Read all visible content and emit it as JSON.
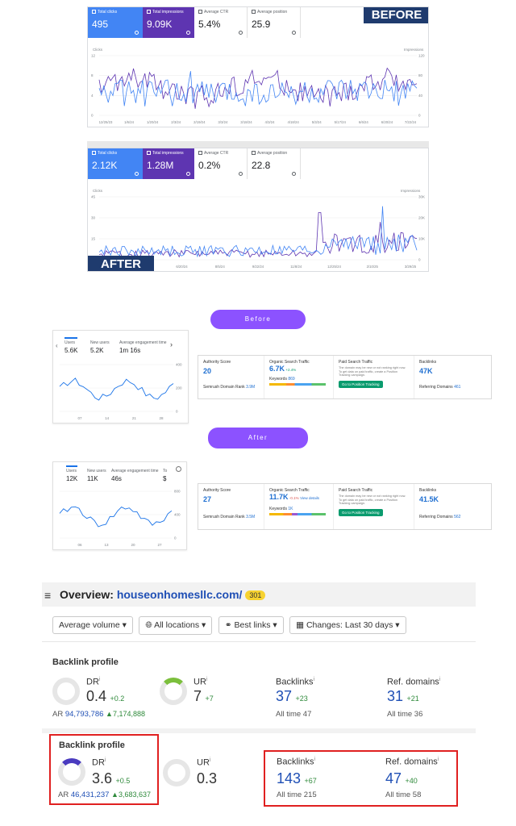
{
  "before_gsc": {
    "banner": "BEFORE",
    "tiles": [
      {
        "label": "Total clicks",
        "value": "495"
      },
      {
        "label": "Total impressions",
        "value": "9.09K"
      },
      {
        "label": "Average CTR",
        "value": "5.4%"
      },
      {
        "label": "Average position",
        "value": "25.9"
      }
    ],
    "y_left_title": "Clicks",
    "y_right_title": "Impressions",
    "y_left": [
      "12",
      "8",
      "4",
      "0"
    ],
    "y_right": [
      "120",
      "80",
      "40",
      "0"
    ],
    "x_ticks": [
      "12/25/23",
      "1/6/24",
      "1/20/24",
      "2/3/24",
      "2/19/24",
      "3/3/24",
      "3/18/24",
      "4/3/24",
      "4/18/24",
      "5/3/24",
      "5/17/24",
      "6/6/24",
      "6/20/24",
      "7/22/24"
    ]
  },
  "after_gsc": {
    "banner": "AFTER",
    "tiles": [
      {
        "label": "Total clicks",
        "value": "2.12K"
      },
      {
        "label": "Total impressions",
        "value": "1.28M"
      },
      {
        "label": "Average CTR",
        "value": "0.2%"
      },
      {
        "label": "Average position",
        "value": "22.8"
      }
    ],
    "y_left_title": "Clicks",
    "y_right_title": "Impressions",
    "y_left": [
      "45",
      "30",
      "15",
      "0"
    ],
    "y_right": [
      "30K",
      "20K",
      "10K",
      "0"
    ],
    "x_ticks": [
      "3/10/24",
      "5/4/24",
      "6/20/24",
      "8/5/24",
      "9/22/24",
      "11/8/24",
      "12/25/24",
      "2/10/25",
      "3/29/25"
    ]
  },
  "pills": {
    "before": "Before",
    "after": "After"
  },
  "ga_before": {
    "metrics": [
      {
        "label": "Users",
        "value": "5.6K"
      },
      {
        "label": "New users",
        "value": "5.2K"
      },
      {
        "label": "Average engagement time",
        "value": "1m 16s"
      }
    ],
    "x_ticks": [
      "07",
      "14",
      "21",
      "28"
    ],
    "y_ticks": [
      "400",
      "200",
      "0"
    ]
  },
  "ga_after": {
    "metrics": [
      {
        "label": "Users",
        "value": "12K"
      },
      {
        "label": "New users",
        "value": "11K"
      },
      {
        "label": "Average engagement time",
        "value": "46s"
      },
      {
        "label": "To",
        "value": "$"
      }
    ],
    "x_ticks": [
      "06",
      "13",
      "20",
      "27"
    ],
    "y_ticks": [
      "800",
      "400",
      "0"
    ]
  },
  "semrush_before": {
    "authority_label": "Authority Score",
    "authority": "20",
    "domain_rank": "Semrush Domain Rank",
    "domain_rank_val": "3.9M",
    "organic_label": "Organic Search Traffic",
    "organic": "6.7K",
    "organic_delta": "+2.4%",
    "keywords_label": "Keywords",
    "keywords": "869",
    "paid_label": "Paid Search Traffic",
    "paid_text": "The domain may be new or not ranking right now. To get data on paid traffic, create a Position Tracking campaign.",
    "button": "Go to Position Tracking",
    "backlinks_label": "Backlinks",
    "backlinks": "47K",
    "ref_label": "Referring Domains",
    "ref": "461"
  },
  "semrush_after": {
    "authority_label": "Authority Score",
    "authority": "27",
    "domain_rank": "Semrush Domain Rank",
    "domain_rank_val": "3.5M",
    "organic_label": "Organic Search Traffic",
    "organic": "11.7K",
    "organic_delta": "-0.1%",
    "view_details": "View details",
    "keywords_label": "Keywords",
    "keywords": "1K",
    "paid_label": "Paid Search Traffic",
    "paid_text": "The domain may be new or not ranking right now. To get data on paid traffic, create a Position Tracking campaign.",
    "button": "Go to Position Tracking",
    "backlinks_label": "Backlinks",
    "backlinks": "41.5K",
    "ref_label": "Referring Domains",
    "ref": "562"
  },
  "ahrefs": {
    "title_prefix": "Overview:",
    "domain": "houseonhomesllc.com/",
    "badge": "301",
    "filters": [
      "Average volume",
      "All locations",
      "Best links",
      "Changes: Last 30 days"
    ],
    "before": {
      "section": "Backlink profile",
      "dr_label": "DR",
      "dr": "0.4",
      "dr_delta": "+0.2",
      "ar_label": "AR",
      "ar": "94,793,786",
      "ar_delta": "7,174,888",
      "ur_label": "UR",
      "ur": "7",
      "ur_delta": "+7",
      "backlinks_label": "Backlinks",
      "backlinks": "37",
      "backlinks_delta": "+23",
      "backlinks_all": "All time 47",
      "ref_label": "Ref. domains",
      "ref": "31",
      "ref_delta": "+21",
      "ref_all": "All time 36"
    },
    "after": {
      "section": "Backlink profile",
      "dr_label": "DR",
      "dr": "3.6",
      "dr_delta": "+0.5",
      "ar_label": "AR",
      "ar": "46,431,237",
      "ar_delta": "3,683,637",
      "ur_label": "UR",
      "ur": "0.3",
      "backlinks_label": "Backlinks",
      "backlinks": "143",
      "backlinks_delta": "+67",
      "backlinks_all": "All time 215",
      "ref_label": "Ref. domains",
      "ref": "47",
      "ref_delta": "+40",
      "ref_all": "All time 58"
    }
  },
  "colors": {
    "clicks": "#4285f4",
    "impressions": "#5e35b1",
    "pill": "#8c52ff",
    "banner": "#1f3b6e",
    "green": "#2f8a3b",
    "red": "#e02020"
  }
}
